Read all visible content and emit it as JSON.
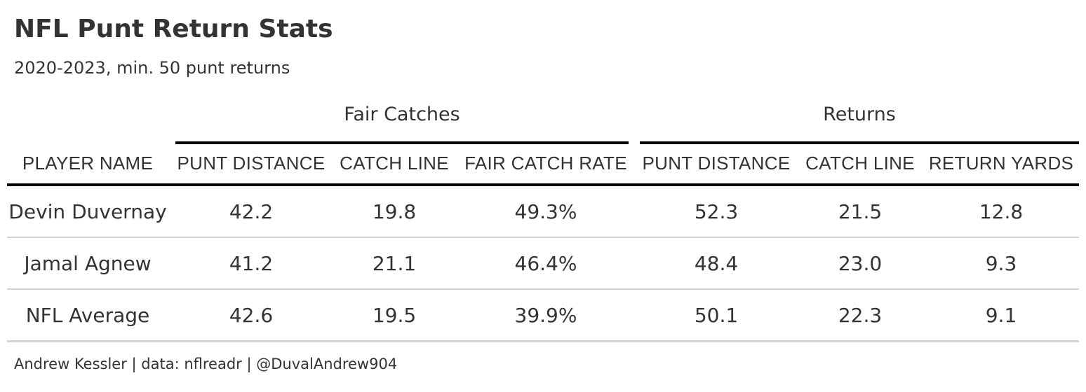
{
  "header": {
    "title": "NFL Punt Return Stats",
    "subtitle": "2020-2023, min. 50 punt returns"
  },
  "table": {
    "groups": [
      {
        "label": "Fair Catches"
      },
      {
        "label": "Returns"
      }
    ],
    "columns": [
      "PLAYER NAME",
      "PUNT DISTANCE",
      "CATCH LINE",
      "FAIR CATCH RATE",
      "PUNT DISTANCE",
      "CATCH LINE",
      "RETURN YARDS"
    ],
    "rows": [
      [
        "Devin Duvernay",
        "42.2",
        "19.8",
        "49.3%",
        "52.3",
        "21.5",
        "12.8"
      ],
      [
        "Jamal Agnew",
        "41.2",
        "21.1",
        "46.4%",
        "48.4",
        "23.0",
        "9.3"
      ],
      [
        "NFL Average",
        "42.6",
        "19.5",
        "39.9%",
        "50.1",
        "22.3",
        "9.1"
      ]
    ]
  },
  "footer": {
    "caption": "Andrew Kessler | data: nflreadr | @DuvalAndrew904"
  },
  "colors": {
    "text": "#333333",
    "rule_strong": "#000000",
    "rule_light": "#d3d3d3"
  }
}
